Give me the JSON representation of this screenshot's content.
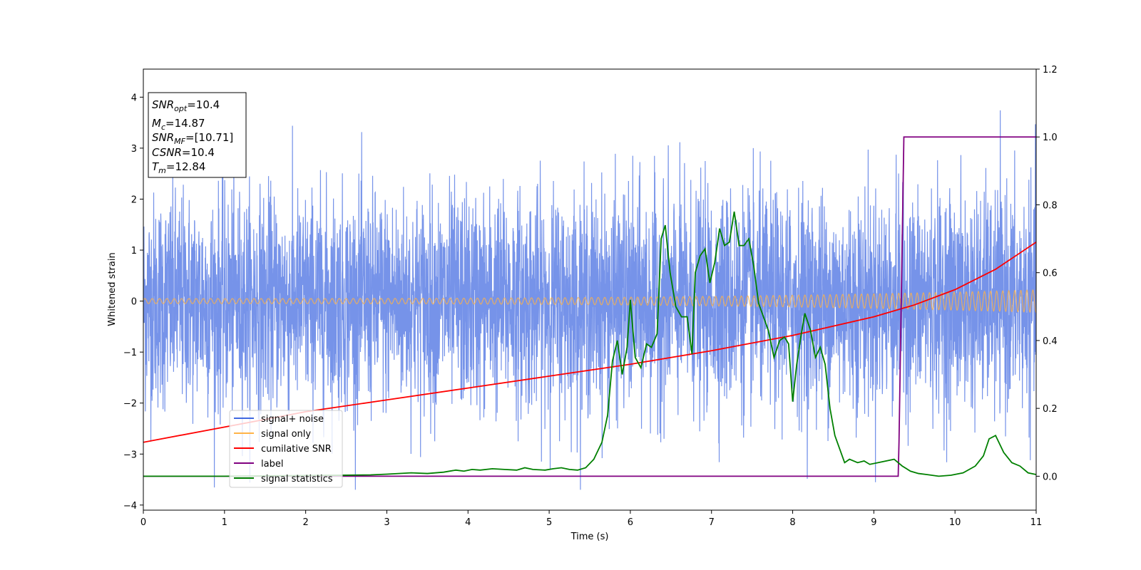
{
  "chart_data": {
    "type": "line",
    "title": "",
    "xlabel": "Time (s)",
    "ylabel": "Whitened strain",
    "xlim": [
      0,
      11
    ],
    "ylim": [
      -4.1,
      4.55
    ],
    "y2lim": [
      -0.1,
      1.2
    ],
    "x_ticks": [
      0,
      1,
      2,
      3,
      4,
      5,
      6,
      7,
      8,
      9,
      10,
      11
    ],
    "y_ticks": [
      -4,
      -3,
      -2,
      -1,
      0,
      1,
      2,
      3,
      4
    ],
    "y2_ticks": [
      0.0,
      0.2,
      0.4,
      0.6,
      0.8,
      1.0,
      1.2
    ],
    "grid": false,
    "legend_position": "lower-left",
    "colors": {
      "signal_noise": "#4169e1",
      "signal_only": "#ffb347",
      "cumulative_snr": "#ff0000",
      "label": "#800080",
      "signal_statistics": "#008000"
    },
    "series": [
      {
        "key": "signal_noise",
        "name": "signal+ noise",
        "axis": "left",
        "description_range": [
          -3.7,
          4.15
        ]
      },
      {
        "key": "signal_only",
        "name": "signal only",
        "axis": "left",
        "amplitude_start": 0.05,
        "amplitude_end": 0.22
      },
      {
        "key": "cumulative_snr",
        "name": "cumilative SNR",
        "axis": "right",
        "x": [
          0,
          1,
          2,
          3,
          4,
          5,
          6,
          7,
          8,
          9,
          9.5,
          10,
          10.5,
          11
        ],
        "values": [
          0.1,
          0.145,
          0.19,
          0.225,
          0.26,
          0.295,
          0.33,
          0.37,
          0.415,
          0.47,
          0.505,
          0.55,
          0.61,
          0.69
        ]
      },
      {
        "key": "label",
        "name": "label",
        "axis": "right",
        "x": [
          0,
          9.3,
          9.31,
          9.37,
          11
        ],
        "values": [
          0.0,
          0.0,
          0.1,
          1.0,
          1.0
        ]
      },
      {
        "key": "signal_statistics",
        "name": "signal statistics",
        "axis": "right",
        "x": [
          0,
          0.5,
          1,
          1.5,
          2,
          2.5,
          2.8,
          3,
          3.3,
          3.5,
          3.7,
          3.85,
          3.95,
          4.05,
          4.15,
          4.3,
          4.45,
          4.6,
          4.7,
          4.8,
          4.95,
          5.05,
          5.15,
          5.25,
          5.35,
          5.45,
          5.55,
          5.65,
          5.72,
          5.78,
          5.84,
          5.9,
          5.96,
          6.0,
          6.06,
          6.13,
          6.2,
          6.26,
          6.33,
          6.38,
          6.43,
          6.49,
          6.56,
          6.63,
          6.7,
          6.76,
          6.8,
          6.86,
          6.92,
          6.98,
          7.04,
          7.1,
          7.16,
          7.22,
          7.28,
          7.34,
          7.4,
          7.46,
          7.52,
          7.58,
          7.64,
          7.7,
          7.77,
          7.84,
          7.9,
          7.95,
          8.0,
          8.05,
          8.1,
          8.15,
          8.22,
          8.28,
          8.34,
          8.4,
          8.46,
          8.52,
          8.58,
          8.64,
          8.7,
          8.8,
          8.88,
          8.95,
          9.05,
          9.15,
          9.25,
          9.35,
          9.45,
          9.55,
          9.65,
          9.8,
          9.95,
          10.1,
          10.25,
          10.35,
          10.42,
          10.5,
          10.6,
          10.7,
          10.8,
          10.9,
          11.0
        ],
        "values": [
          0.0,
          0.0,
          0.0,
          0.001,
          0.002,
          0.003,
          0.004,
          0.006,
          0.01,
          0.008,
          0.012,
          0.018,
          0.015,
          0.02,
          0.018,
          0.022,
          0.02,
          0.018,
          0.025,
          0.02,
          0.018,
          0.022,
          0.025,
          0.02,
          0.018,
          0.025,
          0.05,
          0.1,
          0.18,
          0.34,
          0.4,
          0.3,
          0.38,
          0.52,
          0.35,
          0.32,
          0.39,
          0.38,
          0.42,
          0.7,
          0.74,
          0.6,
          0.5,
          0.47,
          0.47,
          0.36,
          0.6,
          0.65,
          0.67,
          0.57,
          0.63,
          0.73,
          0.68,
          0.69,
          0.78,
          0.68,
          0.68,
          0.7,
          0.62,
          0.51,
          0.47,
          0.43,
          0.35,
          0.4,
          0.41,
          0.39,
          0.22,
          0.33,
          0.41,
          0.48,
          0.43,
          0.35,
          0.38,
          0.33,
          0.2,
          0.12,
          0.08,
          0.04,
          0.05,
          0.04,
          0.045,
          0.035,
          0.04,
          0.045,
          0.05,
          0.03,
          0.015,
          0.008,
          0.005,
          0.0,
          0.003,
          0.01,
          0.03,
          0.06,
          0.11,
          0.12,
          0.07,
          0.04,
          0.03,
          0.01,
          0.005
        ]
      }
    ],
    "annotations": {
      "snr_opt": "10.4",
      "mc": "14.87",
      "snr_mf": "[10.71]",
      "csnr": "10.4",
      "tm": "12.84"
    }
  }
}
